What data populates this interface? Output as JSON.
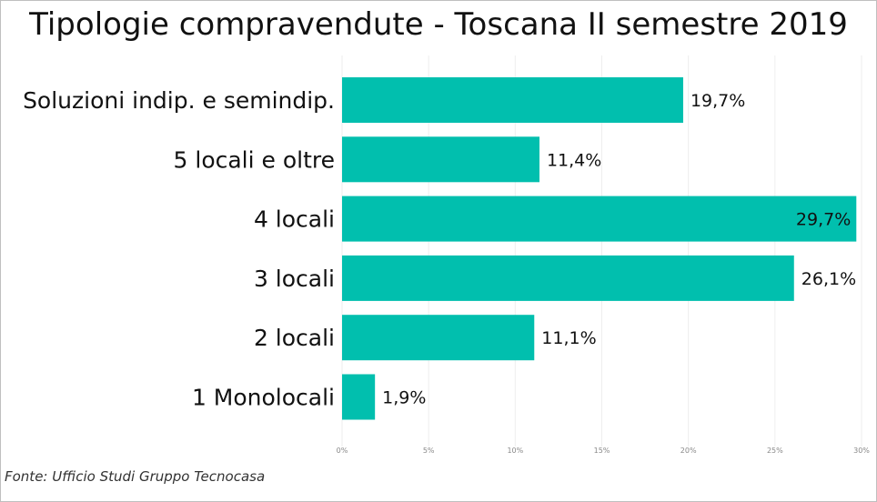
{
  "chart_data": {
    "type": "bar",
    "orientation": "horizontal",
    "title": "Tipologie compravendute - Toscana II semestre 2019",
    "categories": [
      "Soluzioni indip. e semindip.",
      "5 locali e oltre",
      "4 locali",
      "3 locali",
      "2 locali",
      "1 Monolocali"
    ],
    "values": [
      19.7,
      11.4,
      29.7,
      26.1,
      11.1,
      1.9
    ],
    "value_labels": [
      "19,7%",
      "11,4%",
      "29,7%",
      "26,1%",
      "11,1%",
      "1,9%"
    ],
    "xlim": [
      0,
      30
    ],
    "ticks": [
      0,
      5,
      10,
      15,
      20,
      25,
      30
    ],
    "tick_labels": [
      "0%",
      "5%",
      "10%",
      "15%",
      "20%",
      "25%",
      "30%"
    ],
    "grid": true,
    "bar_color": "#01BFAE"
  },
  "source": "Fonte: Ufficio Studi Gruppo Tecnocasa"
}
